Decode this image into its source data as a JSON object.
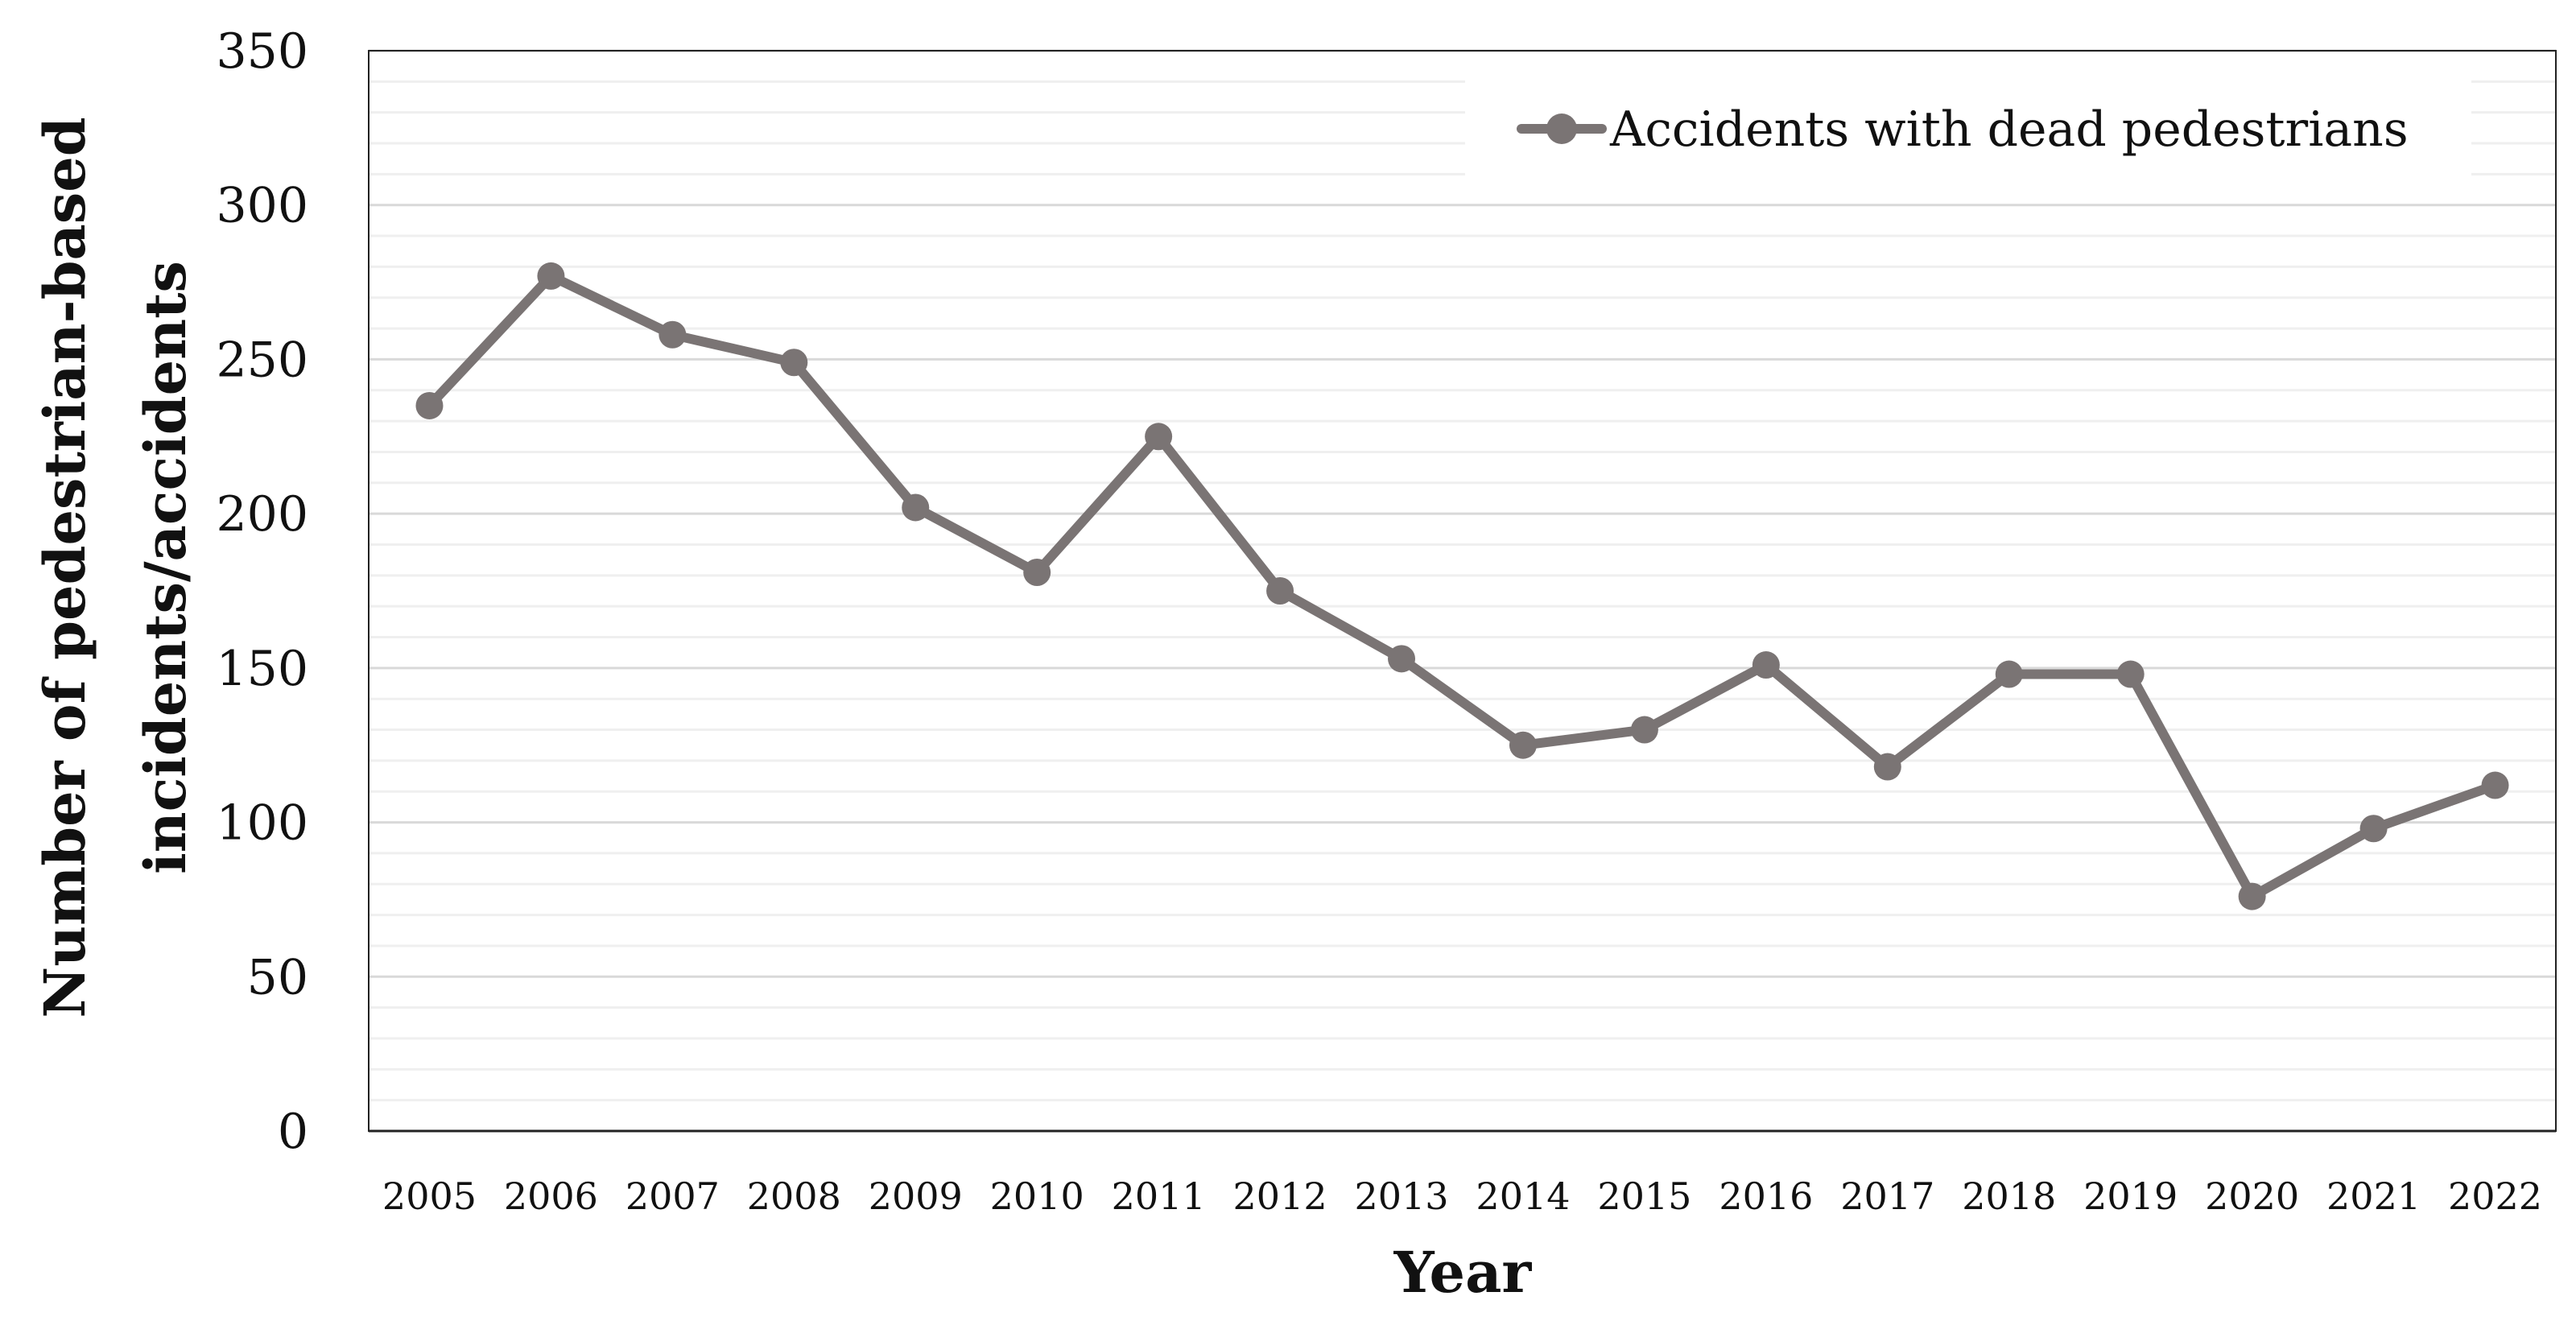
{
  "chart_data": {
    "type": "line",
    "categories": [
      "2005",
      "2006",
      "2007",
      "2008",
      "2009",
      "2010",
      "2011",
      "2012",
      "2013",
      "2014",
      "2015",
      "2016",
      "2017",
      "2018",
      "2019",
      "2020",
      "2021",
      "2022"
    ],
    "series": [
      {
        "name": "Accidents with dead pedestrians",
        "values": [
          235,
          277,
          258,
          249,
          202,
          181,
          225,
          175,
          153,
          125,
          130,
          151,
          118,
          148,
          148,
          76,
          98,
          112
        ],
        "color": "#7a7474"
      }
    ],
    "title": "",
    "xlabel": "Year",
    "ylabel_lines": [
      "Number of pedestrian-based",
      "incidents/accidents"
    ],
    "ylim": [
      0,
      350
    ],
    "yticks": [
      0,
      50,
      100,
      150,
      200,
      250,
      300,
      350
    ],
    "minor_grid_step": 10,
    "grid": true,
    "legend_position": "top-right",
    "colors": {
      "major_grid": "#d9d9d9",
      "minor_grid": "#efefef",
      "axis": "#222222"
    }
  }
}
